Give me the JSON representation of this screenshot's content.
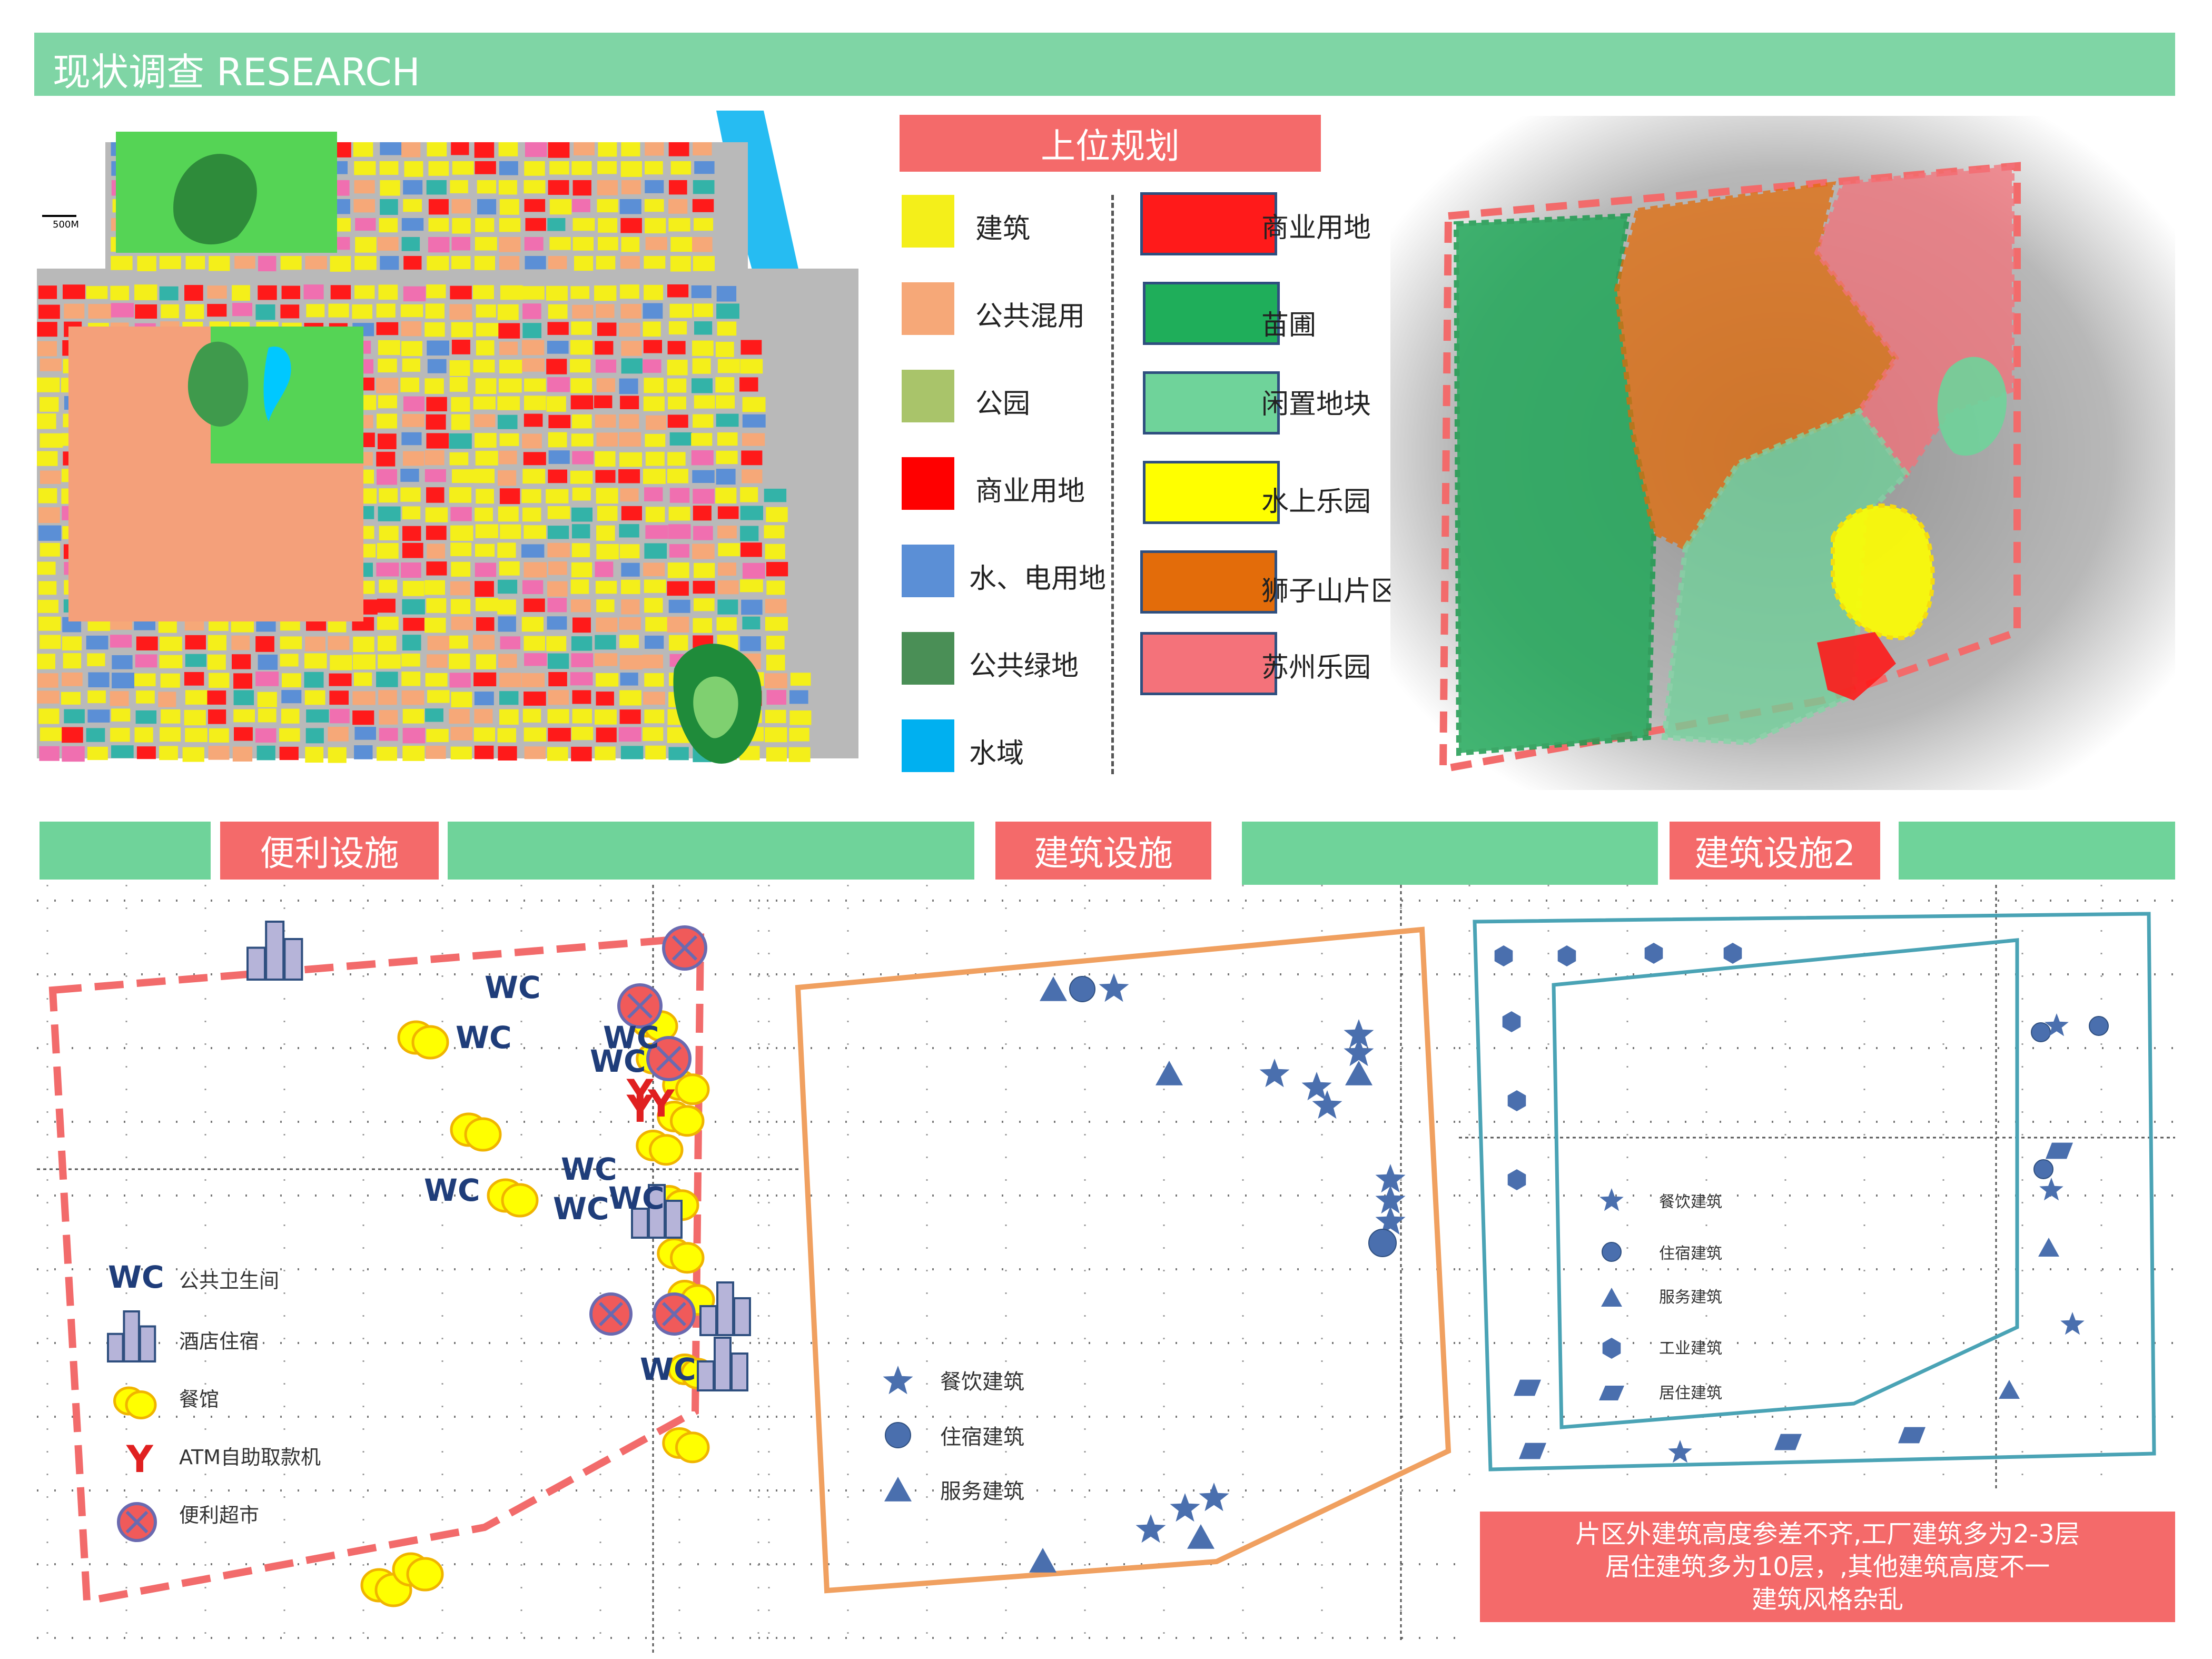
{
  "header": {
    "title": "现状调查   RESEARCH"
  },
  "plan": {
    "title": "上位规划",
    "scale_label": "500M",
    "legend_left": [
      {
        "label": "建筑",
        "color": "#f4ef1a"
      },
      {
        "label": "公共混用",
        "color": "#f6a878"
      },
      {
        "label": "公园",
        "color": "#a9c46a"
      },
      {
        "label": "商业用地",
        "color": "#ff0000"
      },
      {
        "label": "水、电用地",
        "color": "#5b8fd6"
      },
      {
        "label": "公共绿地",
        "color": "#4a8f56"
      },
      {
        "label": "水域",
        "color": "#00b0f0"
      }
    ],
    "legend_right": [
      {
        "label": "商业用地",
        "color": "#ff1a1a"
      },
      {
        "label": "苗圃",
        "color": "#1fae5a"
      },
      {
        "label": "闲置地块",
        "color": "#6fd39a"
      },
      {
        "label": "水上乐园",
        "color": "#ffff00"
      },
      {
        "label": "狮子山片区",
        "color": "#e36c0a"
      },
      {
        "label": "苏州乐园",
        "color": "#f4727a"
      }
    ]
  },
  "sections": {
    "convenience": "便利设施",
    "building": "建筑设施",
    "building2": "建筑设施2"
  },
  "convenience_legend": [
    {
      "icon": "wc-icon",
      "symbol": "WC",
      "label": "公共卫生间"
    },
    {
      "icon": "hotel-icon",
      "label": "酒店住宿"
    },
    {
      "icon": "restaurant-icon",
      "label": "餐馆"
    },
    {
      "icon": "atm-icon",
      "symbol": "Y",
      "label": "ATM自助取款机"
    },
    {
      "icon": "supermarket-icon",
      "label": "便利超市"
    }
  ],
  "wc_marks": [
    "WC",
    "WC",
    "WC",
    "WC",
    "WC",
    "WC",
    "WC",
    "WC",
    "WC",
    "WC"
  ],
  "atm_marks": [
    "Y",
    "Y",
    "Y"
  ],
  "building_legend": [
    {
      "icon": "star-icon",
      "label": "餐饮建筑"
    },
    {
      "icon": "circle-icon",
      "label": "住宿建筑"
    },
    {
      "icon": "triangle-icon",
      "label": "服务建筑"
    }
  ],
  "building2_legend": [
    {
      "icon": "star-icon",
      "label": "餐饮建筑"
    },
    {
      "icon": "circle-icon",
      "label": "住宿建筑"
    },
    {
      "icon": "triangle-icon",
      "label": "服务建筑"
    },
    {
      "icon": "hexagon-icon",
      "label": "工业建筑"
    },
    {
      "icon": "parallelogram-icon",
      "label": "居住建筑"
    }
  ],
  "note": {
    "lines": [
      "片区外建筑高度参差不齐,工厂建筑多为2-3层",
      "居住建筑多为10层，,其他建筑高度不一",
      "建筑风格杂乱"
    ]
  },
  "colors": {
    "header": "#7fd5a5",
    "label_red": "#f46a6a",
    "marker_blue": "#4a6fae",
    "orange_line": "#f0a060",
    "teal_line": "#4aa3b5",
    "dashed_red": "#f26b6b"
  }
}
